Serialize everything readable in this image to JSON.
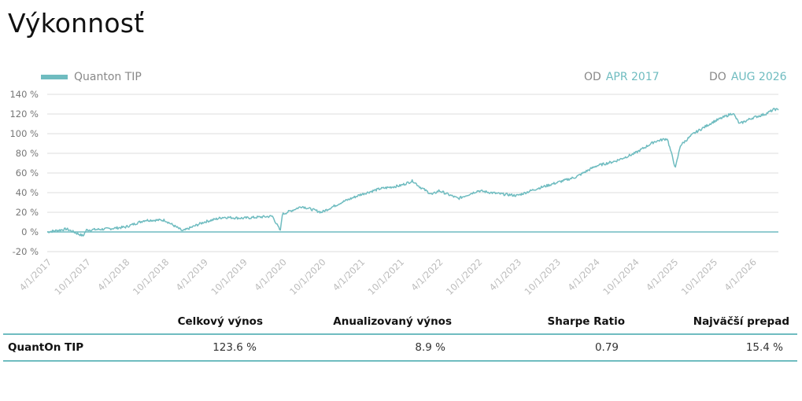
{
  "page": {
    "title": "Výkonnosť"
  },
  "legend": {
    "label": "Quanton TIP",
    "color": "#6fbcc0"
  },
  "range": {
    "from_label": "OD",
    "from_value": "APR 2017",
    "to_label": "DO",
    "to_value": "AUG 2026"
  },
  "chart_data": {
    "type": "line",
    "y_ticks": [
      "140 %",
      "120 %",
      "100 %",
      "80 %",
      "60 %",
      "40 %",
      "20 %",
      "0 %",
      "-20 %"
    ],
    "ylim": [
      -20,
      140
    ],
    "x_ticks": [
      "4/1/2017",
      "10/1/2017",
      "4/1/2018",
      "10/1/2018",
      "4/1/2019",
      "10/1/2019",
      "4/1/2020",
      "10/1/2020",
      "4/1/2021",
      "10/1/2021",
      "4/1/2022",
      "10/1/2022",
      "4/1/2023",
      "10/1/2023",
      "4/1/2024",
      "10/1/2024",
      "4/1/2025",
      "10/1/2025",
      "4/1/2026"
    ],
    "x_start": "4/1/2017",
    "x_end": "8/1/2026",
    "grid": true,
    "series": [
      {
        "name": "Quanton TIP",
        "color": "#6fbcc0",
        "x": [
          "4/1/2017",
          "7/1/2017",
          "9/15/2017",
          "10/1/2017",
          "1/1/2018",
          "4/1/2018",
          "7/1/2018",
          "10/1/2018",
          "12/24/2018",
          "4/1/2019",
          "7/1/2019",
          "10/1/2019",
          "2/15/2020",
          "3/23/2020",
          "4/1/2020",
          "7/1/2020",
          "10/1/2020",
          "1/1/2021",
          "4/1/2021",
          "7/1/2021",
          "10/1/2021",
          "12/1/2021",
          "1/1/2022",
          "3/1/2022",
          "4/1/2022",
          "7/1/2022",
          "10/1/2022",
          "1/1/2023",
          "4/1/2023",
          "7/1/2023",
          "10/1/2023",
          "1/1/2024",
          "4/1/2024",
          "7/1/2024",
          "10/1/2024",
          "1/1/2025",
          "3/1/2025",
          "4/8/2025",
          "5/1/2025",
          "7/1/2025",
          "10/1/2025",
          "12/1/2025",
          "1/1/2026",
          "2/1/2026",
          "4/1/2026",
          "6/1/2026",
          "7/15/2026",
          "8/1/2026"
        ],
        "y": [
          0,
          3,
          -4,
          2,
          3,
          5,
          12,
          12,
          1,
          10,
          15,
          14,
          16,
          1,
          18,
          26,
          20,
          30,
          38,
          44,
          47,
          52,
          46,
          38,
          42,
          34,
          42,
          39,
          37,
          44,
          50,
          56,
          67,
          72,
          80,
          92,
          95,
          65,
          88,
          100,
          112,
          118,
          121,
          110,
          116,
          120,
          125,
          124
        ]
      }
    ]
  },
  "stats": {
    "headers": [
      "",
      "Celkový výnos",
      "Anualizovaný výnos",
      "Sharpe Ratio",
      "Najväčší prepad"
    ],
    "row": {
      "name": "QuantOn TIP",
      "total_return": "123.6 %",
      "annualized_return": "8.9 %",
      "sharpe": "0.79",
      "max_drawdown": "15.4 %"
    }
  }
}
